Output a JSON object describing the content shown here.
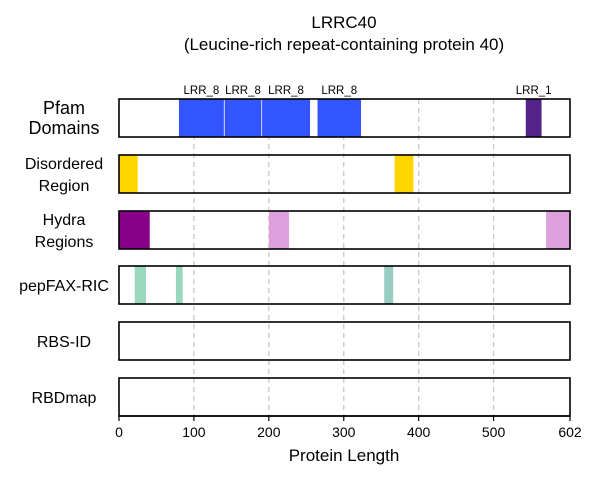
{
  "chart_data": {
    "type": "feature-tracks",
    "title": "LRRC40",
    "subtitle": "(Leucine-rich repeat-containing protein 40)",
    "xlabel": "Protein Length",
    "xlim": [
      0,
      602
    ],
    "xticks": [
      0,
      100,
      200,
      300,
      400,
      500,
      602
    ],
    "xtick_labels": [
      "0",
      "100",
      "200",
      "300",
      "400",
      "500",
      "602"
    ],
    "grid": "dashed vertical at 100,200,300,400,500",
    "tracks": [
      {
        "name": "Pfam\nDomains",
        "features": [
          {
            "label": "LRR_8",
            "start": 80,
            "end": 140,
            "color": "#3355ff"
          },
          {
            "label": "LRR_8",
            "start": 141,
            "end": 190,
            "color": "#3355ff"
          },
          {
            "label": "LRR_8",
            "start": 191,
            "end": 255,
            "color": "#3355ff"
          },
          {
            "label": "LRR_8",
            "start": 265,
            "end": 323,
            "color": "#3355ff"
          },
          {
            "label": "LRR_1",
            "start": 543,
            "end": 564,
            "color": "#55248a"
          }
        ]
      },
      {
        "name": "Disordered\nRegion",
        "features": [
          {
            "start": 0,
            "end": 25,
            "color": "#ffd500"
          },
          {
            "start": 368,
            "end": 393,
            "color": "#ffd500"
          }
        ]
      },
      {
        "name": "Hydra\nRegions",
        "features": [
          {
            "start": 0,
            "end": 41,
            "color": "#880088"
          },
          {
            "start": 200,
            "end": 227,
            "color": "#dda0dd"
          },
          {
            "start": 570,
            "end": 602,
            "color": "#dda0dd"
          }
        ]
      },
      {
        "name": "pepFAX-RIC",
        "features": [
          {
            "start": 21,
            "end": 36,
            "color": "#99d8bd"
          },
          {
            "start": 76,
            "end": 85,
            "color": "#99d8bd"
          },
          {
            "start": 354,
            "end": 366,
            "color": "#99cdc4"
          }
        ]
      },
      {
        "name": "RBS-ID",
        "features": []
      },
      {
        "name": "RBDmap",
        "features": []
      }
    ]
  }
}
